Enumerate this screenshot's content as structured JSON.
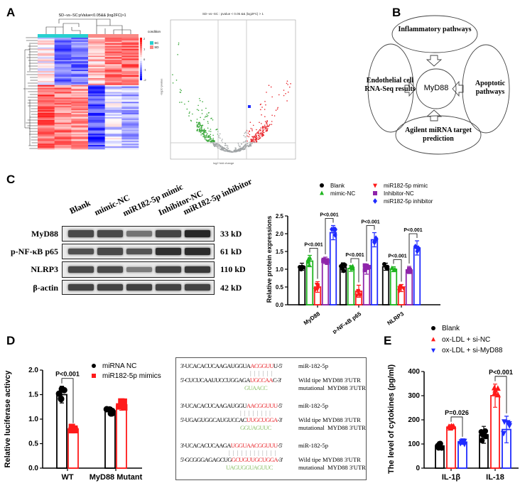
{
  "panels": {
    "a": "A",
    "b": "B",
    "c": "C",
    "d": "D",
    "e": "E"
  },
  "panel_a": {
    "heatmap_title": "SD−vs−SC:pValue<0.05&& |log2FC|>1",
    "legend_title": "condition",
    "legend_items": [
      {
        "label": "SC",
        "color": "#28d0d0"
      },
      {
        "label": "SD",
        "color": "#f98a86"
      }
    ],
    "scale_ticks": [
      "2",
      "1",
      "0",
      "-1",
      "-2"
    ],
    "volcano_title": "SD−vs−SC : pvalue < 0.05 && |log2FC| > 1",
    "volcano_xlabel": "log2 fold change",
    "volcano_ylabel": "-log10 pvalue",
    "volcano_colors": {
      "down": "#3aa83a",
      "none": "#a0a4a6",
      "up": "#e8252b"
    }
  },
  "panel_b": {
    "center": "MyD88",
    "top": "Inflammatory pathways",
    "left": "Endothelial cell RNA-Seq results",
    "right": "Apoptotic pathways",
    "bottom": "Agilent miRNA target prediction"
  },
  "panel_c_blot": {
    "lanes": [
      "Blank",
      "mimic-NC",
      "miR182-5p mimic",
      "Inhibitor-NC",
      "miR182-5p  inhibitor"
    ],
    "rows": [
      {
        "label": "MyD88",
        "kd": "33 kD"
      },
      {
        "label": "p-NF-κB p65",
        "kd": "61 kD"
      },
      {
        "label": "NLRP3",
        "kd": "110 kD"
      },
      {
        "label": "β-actin",
        "kd": "42 kD"
      }
    ]
  },
  "panel_d_seq": {
    "blocks": [
      {
        "mir_a": "3'-UCACACUCAAGAUGGUA",
        "mir_r": "ACGGUU",
        "mir_b": "U-5'",
        "mir_label": "miR-182-5p",
        "pairs": "| | | | | |",
        "wt_a": "5'-CUCUCAAUUCCUGGAGA",
        "wt_r": "UGCCAA",
        "wt_b": "C-3'",
        "wt_label": "Wild tipe MYD88 3'UTR",
        "mut": "GUAACC",
        "mut_label": "mutational  MYD88 3'UTR"
      },
      {
        "mir_a": "3'-UCACACUCAAGAUGGU",
        "mir_r": "AACGGUUU",
        "mir_b": "-5'",
        "mir_label": "miR-182-5p",
        "pairs": "| | | | | | | |",
        "wt_a": "5'-UGAGUGGCAUGUCCAC",
        "wt_r": "UUGCUGGA",
        "wt_b": "-3'",
        "wt_label": "Wild tipe MYD88 3'UTR",
        "mut": "GGUAGUUC",
        "mut_label": "mutational  MYD88 3'UTR"
      },
      {
        "mir_a": "3'-UCACACUCAAGA",
        "mir_r": "UGGUAACGGUUU",
        "mir_b": "-5'",
        "mir_label": "miR-182-5p",
        "pairs": "| | | | | | | | | | | |",
        "wt_a": "5'-GCGGGAGAGCUG",
        "wt_r": "GCUGUUGCUGGA",
        "wt_b": "-3'",
        "wt_label": "Wild tipe MYD88 3'UTR",
        "mut": "UAGUGGUAGUUC",
        "mut_label": "mutational  MYD88 3'UTR"
      }
    ]
  },
  "chart_data": [
    {
      "id": "c",
      "type": "bar",
      "ylabel": "Relative protein expressions",
      "ylim": [
        0,
        2.5
      ],
      "yticks": [
        "0.0",
        "0.5",
        "1.0",
        "1.5",
        "2.0",
        "2.5"
      ],
      "categories": [
        "MyD88",
        "p-NF-κB p65",
        "NLRP3"
      ],
      "series": [
        {
          "name": "Blank",
          "color": "#000000",
          "marker": "circle",
          "values": [
            1.07,
            1.05,
            1.07
          ],
          "errors": [
            0.1,
            0.13,
            0.1
          ]
        },
        {
          "name": "mimic-NC",
          "color": "#1fb51f",
          "marker": "triangle",
          "values": [
            1.23,
            1.02,
            1.0
          ],
          "errors": [
            0.16,
            0.08,
            0.07
          ]
        },
        {
          "name": "miR182-5p mimic",
          "color": "#ff1a1a",
          "marker": "triangle-down",
          "values": [
            0.5,
            0.38,
            0.47
          ],
          "errors": [
            0.15,
            0.17,
            0.1
          ]
        },
        {
          "name": "Inhibitor-NC",
          "color": "#8e24aa",
          "marker": "square",
          "values": [
            1.25,
            1.0,
            0.98
          ],
          "errors": [
            0.09,
            0.14,
            0.1
          ]
        },
        {
          "name": "miR182-5p inhibitor",
          "color": "#1f2bff",
          "marker": "diamond",
          "values": [
            2.03,
            1.83,
            1.6
          ],
          "errors": [
            0.2,
            0.2,
            0.2
          ]
        }
      ],
      "annotations": [
        {
          "text": "P<0.001",
          "category": 0,
          "from": 1,
          "to": 2
        },
        {
          "text": "P<0.001",
          "category": 0,
          "from": 3,
          "to": 4
        },
        {
          "text": "P<0.001",
          "category": 1,
          "from": 1,
          "to": 2
        },
        {
          "text": "P<0.001",
          "category": 1,
          "from": 3,
          "to": 4
        },
        {
          "text": "P<0.001",
          "category": 2,
          "from": 1,
          "to": 2
        },
        {
          "text": "P<0.001",
          "category": 2,
          "from": 3,
          "to": 4
        }
      ],
      "legend": "top"
    },
    {
      "id": "d",
      "type": "bar",
      "ylabel": "Relative luciferase activcy",
      "ylim": [
        0,
        2.0
      ],
      "yticks": [
        "0.0",
        "0.5",
        "1.0",
        "1.5",
        "2.0"
      ],
      "categories": [
        "WT",
        "MyD88 Mutant"
      ],
      "series": [
        {
          "name": "miRNA NC",
          "color": "#000000",
          "marker": "circle",
          "values": [
            1.5,
            1.17
          ],
          "errors": [
            0.17,
            0.07
          ]
        },
        {
          "name": "miR182-5p mimics",
          "color": "#ff1a1a",
          "marker": "square",
          "values": [
            0.8,
            1.28
          ],
          "errors": [
            0.06,
            0.1
          ]
        }
      ],
      "annotations": [
        {
          "text": "P<0.001",
          "category": 0,
          "from": 0,
          "to": 1
        }
      ],
      "legend": "top-right"
    },
    {
      "id": "e",
      "type": "bar",
      "ylabel": "The level of cytokines (pg/ml)",
      "ylim": [
        0,
        400
      ],
      "yticks": [
        "0",
        "100",
        "200",
        "300",
        "400"
      ],
      "categories": [
        "IL-1β",
        "IL-18"
      ],
      "series": [
        {
          "name": "Blank",
          "color": "#000000",
          "marker": "circle",
          "values": [
            92,
            138
          ],
          "errors": [
            12,
            35
          ]
        },
        {
          "name": "ox-LDL + si-NC",
          "color": "#ff1a1a",
          "marker": "triangle",
          "values": [
            170,
            300
          ],
          "errors": [
            10,
            48
          ]
        },
        {
          "name": "ox-LDL + si-MyD88",
          "color": "#1f2bff",
          "marker": "triangle-down",
          "values": [
            108,
            160
          ],
          "errors": [
            10,
            55
          ]
        }
      ],
      "annotations": [
        {
          "text": "P=0.026",
          "category": 0,
          "from": 1,
          "to": 2
        },
        {
          "text": "P<0.001",
          "category": 1,
          "from": 1,
          "to": 2
        }
      ],
      "legend": "top"
    }
  ]
}
